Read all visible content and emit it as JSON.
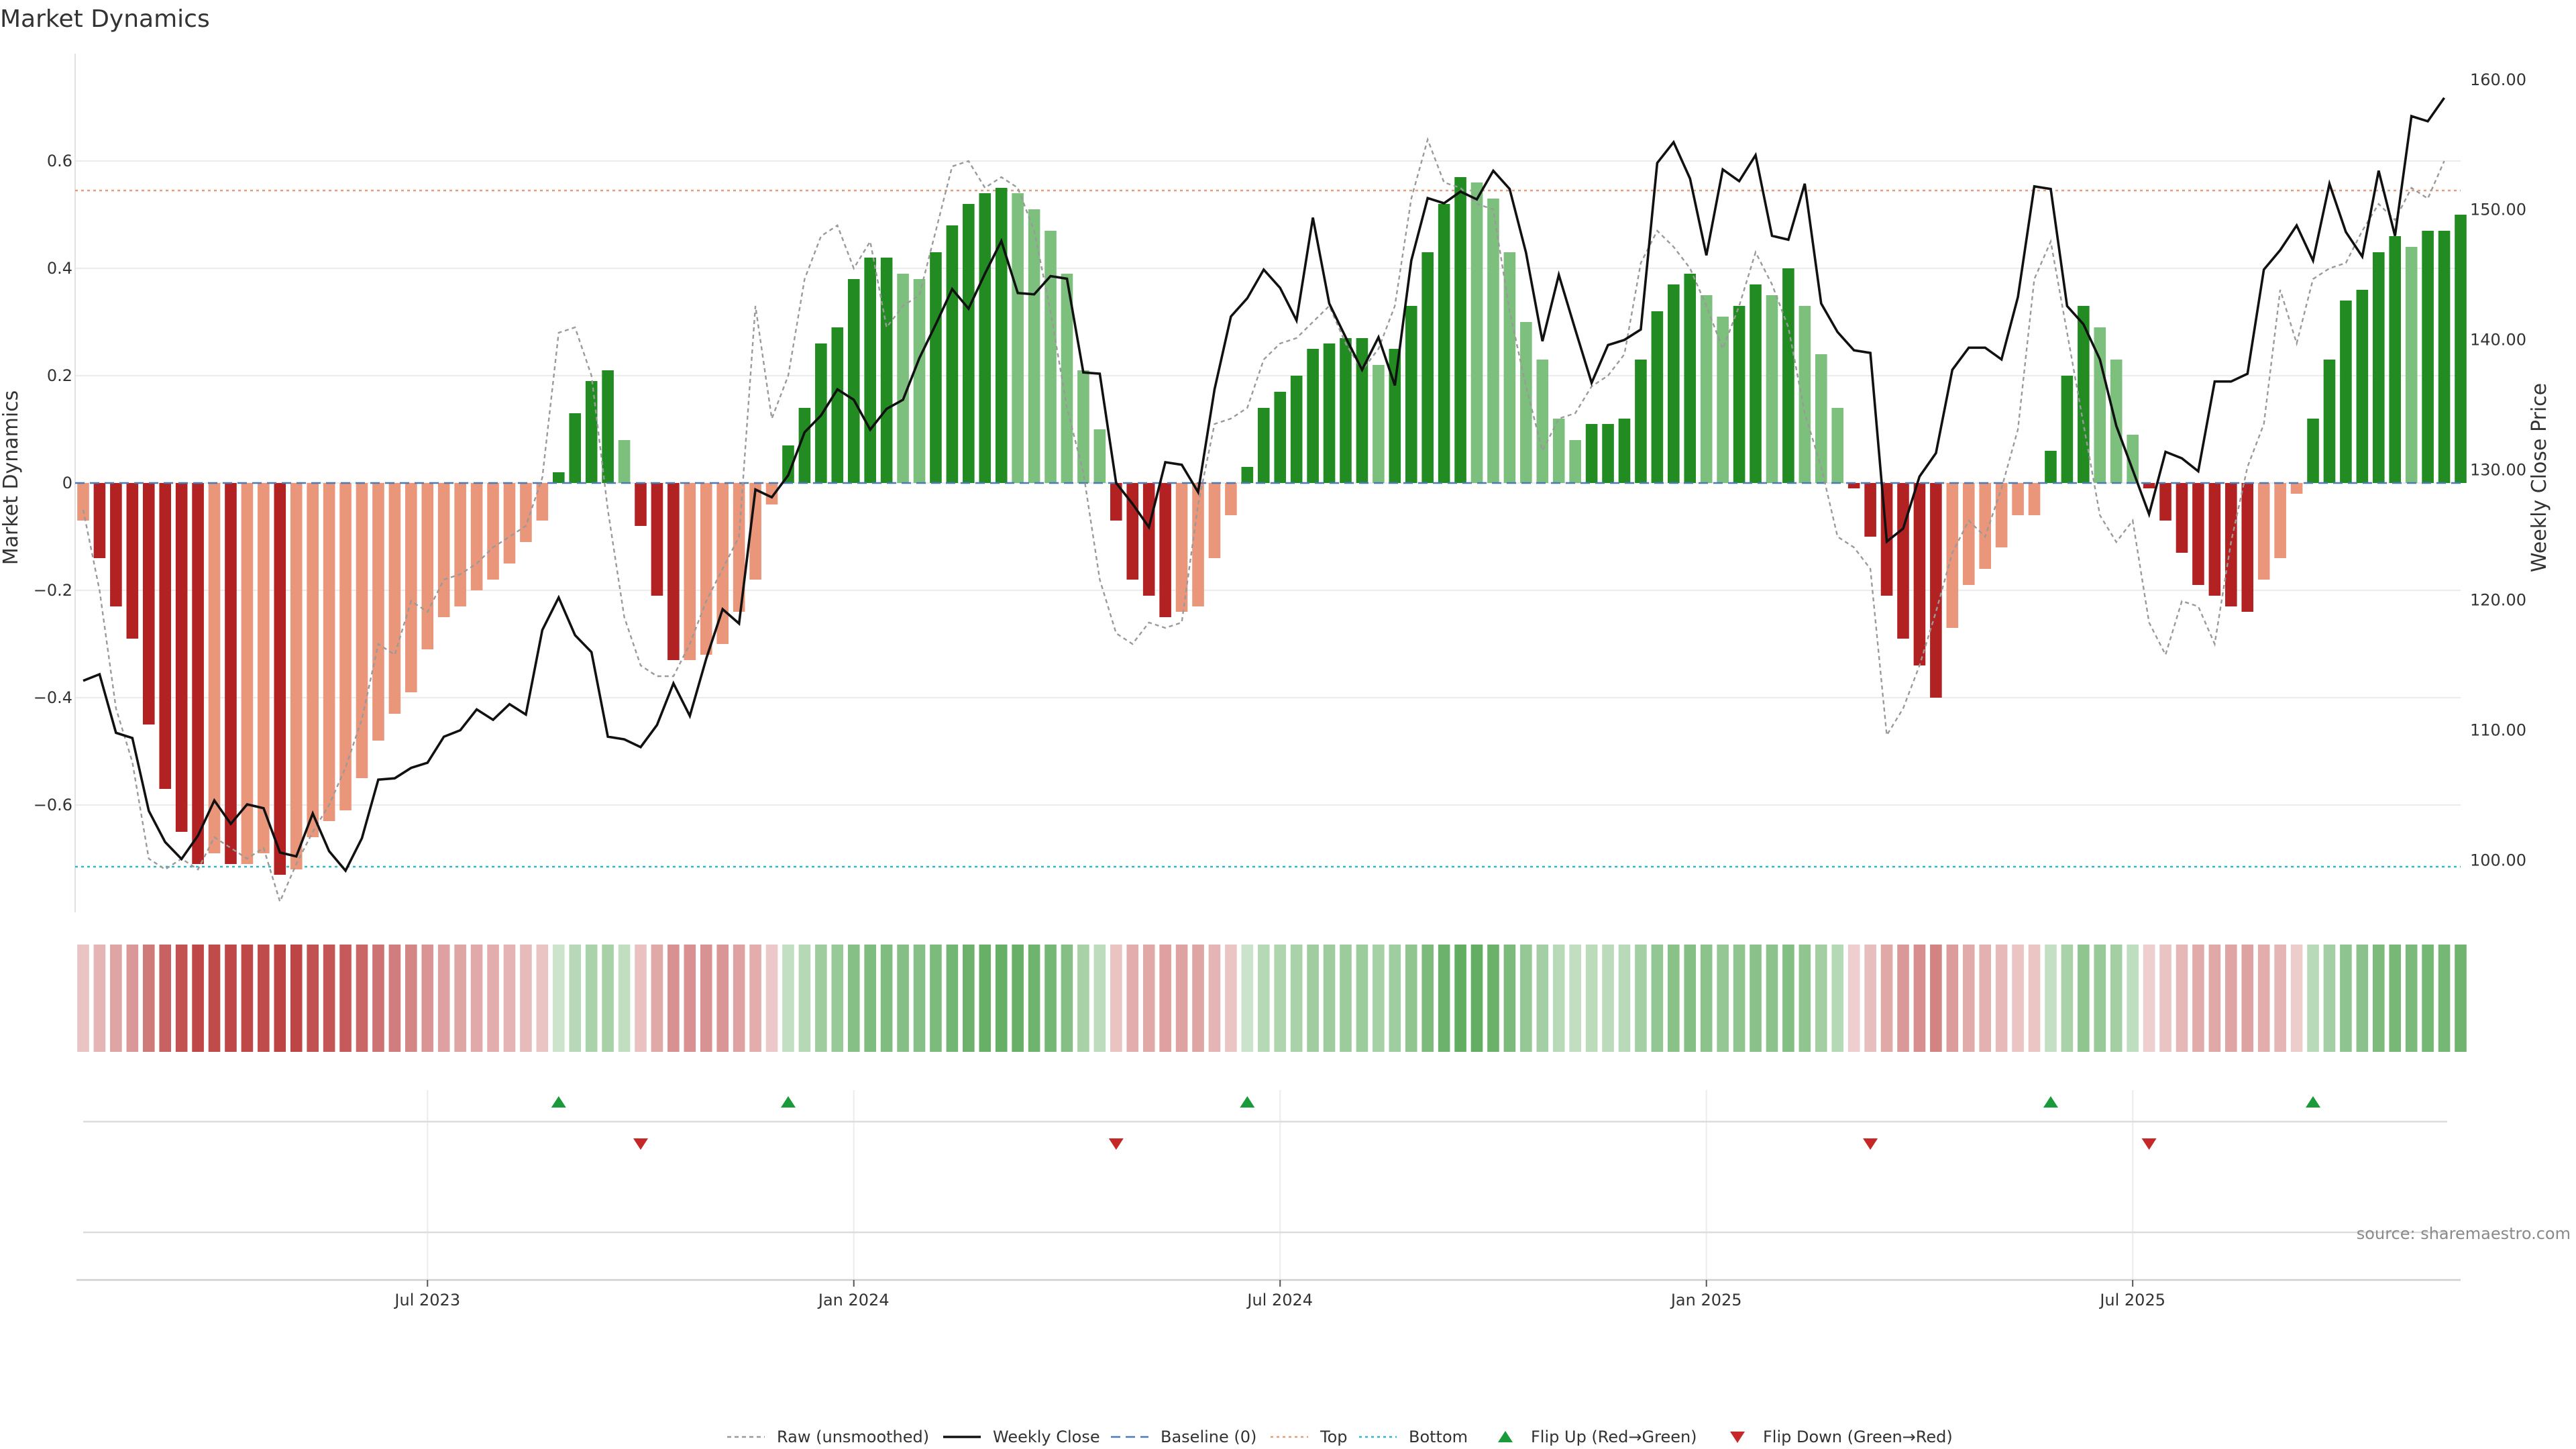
{
  "chart_data": {
    "type": "bar",
    "title": "Market Dynamics",
    "ylabel_left": "Market Dynamics",
    "ylabel_right": "Weekly Close Price",
    "ylim_left": [
      -0.8,
      0.8
    ],
    "ylim_right": [
      96,
      162
    ],
    "left_ticks": [
      0.6,
      0.4,
      0.2,
      0,
      -0.2,
      -0.4,
      -0.6
    ],
    "left_tick_labels": [
      "0.6",
      "0.4",
      "0.2",
      "0",
      "−0.2",
      "−0.4",
      "−0.6"
    ],
    "right_ticks": [
      160,
      150,
      140,
      130,
      120,
      110,
      100
    ],
    "right_tick_labels": [
      "160.00",
      "150.00",
      "140.00",
      "130.00",
      "120.00",
      "110.00",
      "100.00"
    ],
    "x_ticks": [
      {
        "week": 21,
        "label": "Jul 2023"
      },
      {
        "week": 47,
        "label": "Jan 2024"
      },
      {
        "week": 73,
        "label": "Jul 2024"
      },
      {
        "week": 99,
        "label": "Jan 2025"
      },
      {
        "week": 125,
        "label": "Jul 2025"
      }
    ],
    "top_level": 0.545,
    "bottom_level": -0.715,
    "baseline": 0,
    "bar_values": [
      -0.07,
      -0.14,
      -0.23,
      -0.29,
      -0.45,
      -0.57,
      -0.65,
      -0.71,
      -0.69,
      -0.71,
      -0.71,
      -0.69,
      -0.73,
      -0.72,
      -0.66,
      -0.63,
      -0.61,
      -0.55,
      -0.48,
      -0.43,
      -0.39,
      -0.31,
      -0.25,
      -0.23,
      -0.2,
      -0.18,
      -0.15,
      -0.11,
      -0.07,
      0.02,
      0.13,
      0.19,
      0.21,
      0.08,
      -0.08,
      -0.21,
      -0.33,
      -0.33,
      -0.32,
      -0.3,
      -0.24,
      -0.18,
      -0.04,
      0.07,
      0.14,
      0.26,
      0.29,
      0.38,
      0.42,
      0.42,
      0.39,
      0.38,
      0.43,
      0.48,
      0.52,
      0.54,
      0.55,
      0.54,
      0.51,
      0.47,
      0.39,
      0.21,
      0.1,
      -0.07,
      -0.18,
      -0.21,
      -0.25,
      -0.24,
      -0.23,
      -0.14,
      -0.06,
      0.03,
      0.14,
      0.17,
      0.2,
      0.25,
      0.26,
      0.27,
      0.27,
      0.22,
      0.25,
      0.33,
      0.43,
      0.52,
      0.57,
      0.56,
      0.53,
      0.43,
      0.3,
      0.23,
      0.12,
      0.08,
      0.11,
      0.11,
      0.12,
      0.23,
      0.32,
      0.37,
      0.39,
      0.35,
      0.31,
      0.33,
      0.37,
      0.35,
      0.4,
      0.33,
      0.24,
      0.14,
      -0.01,
      -0.1,
      -0.21,
      -0.29,
      -0.34,
      -0.4,
      -0.27,
      -0.19,
      -0.16,
      -0.12,
      -0.06,
      -0.06,
      0.06,
      0.2,
      0.33,
      0.29,
      0.23,
      0.09,
      -0.01,
      -0.07,
      -0.13,
      -0.19,
      -0.21,
      -0.23,
      -0.24,
      -0.18,
      -0.14,
      -0.02,
      0.12,
      0.23,
      0.34,
      0.36,
      0.43,
      0.46,
      0.44,
      0.47,
      0.47,
      0.5
    ],
    "raw_values": [
      -0.05,
      -0.2,
      -0.42,
      -0.52,
      -0.7,
      -0.72,
      -0.7,
      -0.72,
      -0.66,
      -0.68,
      -0.7,
      -0.68,
      -0.78,
      -0.71,
      -0.65,
      -0.6,
      -0.53,
      -0.44,
      -0.3,
      -0.32,
      -0.22,
      -0.24,
      -0.18,
      -0.17,
      -0.15,
      -0.12,
      -0.1,
      -0.08,
      0.01,
      0.28,
      0.29,
      0.2,
      -0.05,
      -0.25,
      -0.34,
      -0.36,
      -0.36,
      -0.3,
      -0.22,
      -0.16,
      -0.1,
      0.33,
      0.12,
      0.2,
      0.38,
      0.46,
      0.48,
      0.4,
      0.45,
      0.29,
      0.33,
      0.35,
      0.47,
      0.59,
      0.6,
      0.55,
      0.57,
      0.55,
      0.47,
      0.32,
      0.14,
      0.02,
      -0.18,
      -0.28,
      -0.3,
      -0.26,
      -0.27,
      -0.26,
      -0.04,
      0.11,
      0.12,
      0.14,
      0.23,
      0.26,
      0.27,
      0.3,
      0.33,
      0.26,
      0.21,
      0.25,
      0.33,
      0.53,
      0.64,
      0.56,
      0.55,
      0.52,
      0.51,
      0.32,
      0.18,
      0.06,
      0.12,
      0.13,
      0.18,
      0.2,
      0.24,
      0.41,
      0.47,
      0.44,
      0.4,
      0.33,
      0.25,
      0.33,
      0.43,
      0.37,
      0.29,
      0.13,
      0.03,
      -0.1,
      -0.12,
      -0.16,
      -0.47,
      -0.42,
      -0.34,
      -0.24,
      -0.13,
      -0.07,
      -0.1,
      -0.01,
      0.1,
      0.38,
      0.45,
      0.28,
      0.11,
      -0.06,
      -0.11,
      -0.07,
      -0.26,
      -0.32,
      -0.22,
      -0.23,
      -0.3,
      -0.11,
      0.03,
      0.11,
      0.36,
      0.26,
      0.38,
      0.4,
      0.41,
      0.47,
      0.52,
      0.49,
      0.55,
      0.53,
      0.6
    ],
    "weekly_close": [
      113.8,
      114.3,
      109.8,
      109.4,
      103.8,
      101.4,
      100.1,
      101.9,
      104.6,
      102.8,
      104.3,
      104,
      100.6,
      100.3,
      103.6,
      100.7,
      99.2,
      101.7,
      106.2,
      106.3,
      107.1,
      107.5,
      109.5,
      110,
      111.6,
      110.8,
      112,
      111.2,
      117.7,
      120.2,
      117.3,
      116,
      109.5,
      109.3,
      108.7,
      110.4,
      113.6,
      111.1,
      115.5,
      119.3,
      118.2,
      128.5,
      127.9,
      129.6,
      132.9,
      134.2,
      136.2,
      135.4,
      133.1,
      134.7,
      135.4,
      138.6,
      141.2,
      143.9,
      142.4,
      145.1,
      147.6,
      143.6,
      143.5,
      144.9,
      144.7,
      137.5,
      137.4,
      129,
      127.4,
      125.6,
      130.6,
      130.4,
      128.3,
      136.2,
      141.8,
      143.2,
      145.4,
      144,
      141.5,
      149.4,
      142.8,
      140.2,
      137.7,
      140.2,
      136.5,
      146.1,
      150.9,
      150.5,
      151.4,
      150.8,
      153,
      151.6,
      146.7,
      139.9,
      145,
      140.8,
      136.7,
      139.6,
      140,
      140.8,
      153.6,
      155.2,
      152.4,
      146.5,
      153.1,
      152.2,
      154.2,
      148,
      147.7,
      152,
      142.8,
      140.6,
      139.2,
      139,
      124.5,
      125.5,
      129.5,
      131.3,
      137.7,
      139.4,
      139.4,
      138.5,
      143.3,
      151.8,
      151.6,
      142.6,
      141.2,
      138.5,
      133.4,
      130,
      126.6,
      131.4,
      130.9,
      129.9,
      136.8,
      136.8,
      137.4,
      145.4,
      146.9,
      148.8,
      146.1,
      152,
      148.3,
      146.4,
      153,
      148,
      157.2,
      156.8,
      158.6
    ]
  },
  "legend": {
    "raw": "Raw (unsmoothed)",
    "close": "Weekly Close",
    "baseline": "Baseline (0)",
    "top": "Top",
    "bottom": "Bottom",
    "flip_up": "Flip Up (Red→Green)",
    "flip_down": "Flip Down (Green→Red)"
  },
  "flip_up_weeks": [
    29,
    43,
    71,
    120,
    136
  ],
  "flip_down_weeks": [
    34,
    63,
    109,
    126
  ],
  "source": "source: sharemaestro.com",
  "colors": {
    "strong_green": "#228b22",
    "light_green": "#7dbf7d",
    "strong_red": "#b22222",
    "light_red": "#e9967a",
    "top_line": "#e0a080",
    "bottom_line": "#30b8c8",
    "baseline": "#4a7ab8",
    "marker_up": "#1a9a3a",
    "marker_down": "#c62828"
  }
}
